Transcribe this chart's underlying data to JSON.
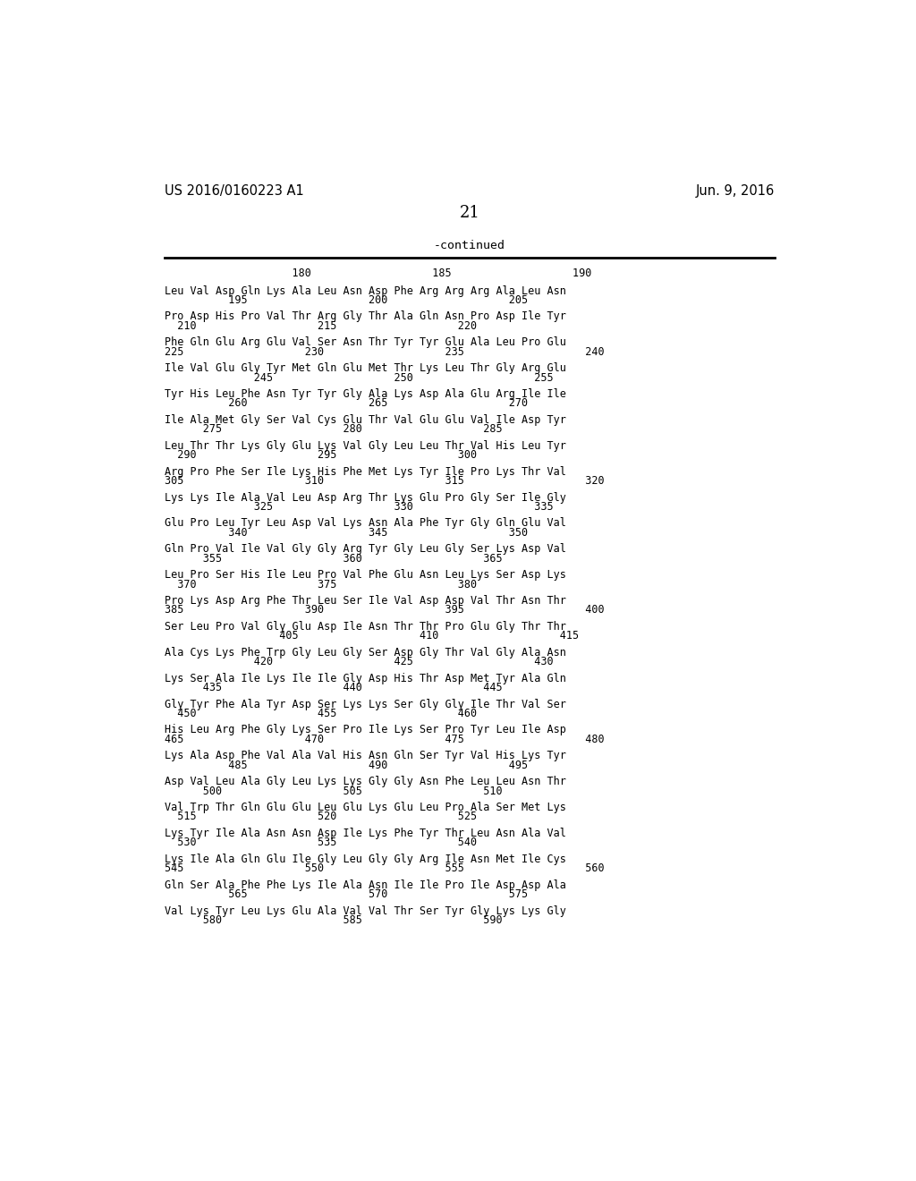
{
  "header_left": "US 2016/0160223 A1",
  "header_right": "Jun. 9, 2016",
  "page_number": "21",
  "continued_label": "-continued",
  "background_color": "#ffffff",
  "text_color": "#000000",
  "num_header": "                    180                   185                   190",
  "sequence_blocks": [
    [
      "Leu Val Asp Gln Lys Ala Leu Asn Asp Phe Arg Arg Arg Ala Leu Asn",
      "          195                   200                   205"
    ],
    [
      "Pro Asp His Pro Val Thr Arg Gly Thr Ala Gln Asn Pro Asp Ile Tyr",
      "  210                   215                   220"
    ],
    [
      "Phe Gln Glu Arg Glu Val Ser Asn Thr Tyr Tyr Glu Ala Leu Pro Glu",
      "225                   230                   235                   240"
    ],
    [
      "Ile Val Glu Gly Tyr Met Gln Glu Met Thr Lys Leu Thr Gly Arg Glu",
      "              245                   250                   255"
    ],
    [
      "Tyr His Leu Phe Asn Tyr Tyr Gly Ala Lys Asp Ala Glu Arg Ile Ile",
      "          260                   265                   270"
    ],
    [
      "Ile Ala Met Gly Ser Val Cys Glu Thr Val Glu Glu Val Ile Asp Tyr",
      "      275                   280                   285"
    ],
    [
      "Leu Thr Thr Lys Gly Glu Lys Val Gly Leu Leu Thr Val His Leu Tyr",
      "  290                   295                   300"
    ],
    [
      "Arg Pro Phe Ser Ile Lys His Phe Met Lys Tyr Ile Pro Lys Thr Val",
      "305                   310                   315                   320"
    ],
    [
      "Lys Lys Ile Ala Val Leu Asp Arg Thr Lys Glu Pro Gly Ser Ile Gly",
      "              325                   330                   335"
    ],
    [
      "Glu Pro Leu Tyr Leu Asp Val Lys Asn Ala Phe Tyr Gly Gln Glu Val",
      "          340                   345                   350"
    ],
    [
      "Gln Pro Val Ile Val Gly Gly Arg Tyr Gly Leu Gly Ser Lys Asp Val",
      "      355                   360                   365"
    ],
    [
      "Leu Pro Ser His Ile Leu Pro Val Phe Glu Asn Leu Lys Ser Asp Lys",
      "  370                   375                   380"
    ],
    [
      "Pro Lys Asp Arg Phe Thr Leu Ser Ile Val Asp Asp Val Thr Asn Thr",
      "385                   390                   395                   400"
    ],
    [
      "Ser Leu Pro Val Gly Glu Asp Ile Asn Thr Thr Pro Glu Gly Thr Thr",
      "                  405                   410                   415"
    ],
    [
      "Ala Cys Lys Phe Trp Gly Leu Gly Ser Asp Gly Thr Val Gly Ala Asn",
      "              420                   425                   430"
    ],
    [
      "Lys Ser Ala Ile Lys Ile Ile Gly Asp His Thr Asp Met Tyr Ala Gln",
      "      435                   440                   445"
    ],
    [
      "Gly Tyr Phe Ala Tyr Asp Ser Lys Lys Ser Gly Gly Ile Thr Val Ser",
      "  450                   455                   460"
    ],
    [
      "His Leu Arg Phe Gly Lys Ser Pro Ile Lys Ser Pro Tyr Leu Ile Asp",
      "465                   470                   475                   480"
    ],
    [
      "Lys Ala Asp Phe Val Ala Val His Asn Gln Ser Tyr Val His Lys Tyr",
      "          485                   490                   495"
    ],
    [
      "Asp Val Leu Ala Gly Leu Lys Lys Gly Gly Asn Phe Leu Leu Asn Thr",
      "      500                   505                   510"
    ],
    [
      "Val Trp Thr Gln Glu Glu Leu Glu Lys Glu Leu Pro Ala Ser Met Lys",
      "  515                   520                   525"
    ],
    [
      "Lys Tyr Ile Ala Asn Asn Asp Ile Lys Phe Tyr Thr Leu Asn Ala Val",
      "  530                   535                   540"
    ],
    [
      "Lys Ile Ala Gln Glu Ile Gly Leu Gly Gly Arg Ile Asn Met Ile Cys",
      "545                   550                   555                   560"
    ],
    [
      "Gln Ser Ala Phe Phe Lys Ile Ala Asn Ile Ile Pro Ile Asp Asp Ala",
      "          565                   570                   575"
    ],
    [
      "Val Lys Tyr Leu Lys Glu Ala Val Val Thr Ser Tyr Gly Lys Lys Gly",
      "      580                   585                   590"
    ]
  ]
}
